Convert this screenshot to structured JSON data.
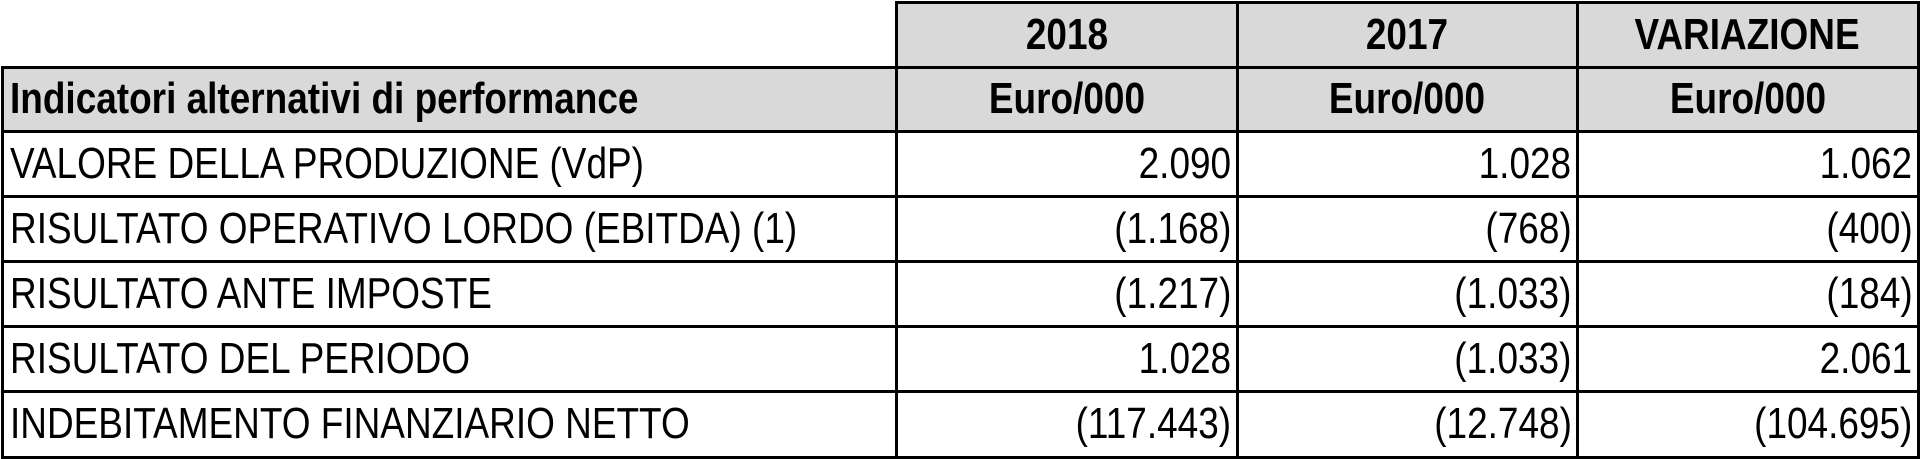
{
  "table": {
    "title": "Indicatori alternativi di performance",
    "columns": [
      {
        "heading": "2018",
        "unit": "Euro/000"
      },
      {
        "heading": "2017",
        "unit": "Euro/000"
      },
      {
        "heading": "VARIAZIONE",
        "unit": "Euro/000"
      }
    ],
    "rows": [
      {
        "label": "VALORE DELLA PRODUZIONE (VdP)",
        "values": [
          "2.090",
          "1.028",
          "1.062"
        ]
      },
      {
        "label": "RISULTATO OPERATIVO LORDO (EBITDA) (1)",
        "values": [
          "(1.168)",
          "(768)",
          "(400)"
        ]
      },
      {
        "label": "RISULTATO ANTE IMPOSTE",
        "values": [
          "(1.217)",
          "(1.033)",
          "(184)"
        ]
      },
      {
        "label": "RISULTATO DEL PERIODO",
        "values": [
          "1.028",
          "(1.033)",
          "2.061"
        ]
      },
      {
        "label": "INDEBITAMENTO FINANZIARIO NETTO",
        "values": [
          "(117.443)",
          "(12.748)",
          "(104.695)"
        ]
      }
    ]
  }
}
